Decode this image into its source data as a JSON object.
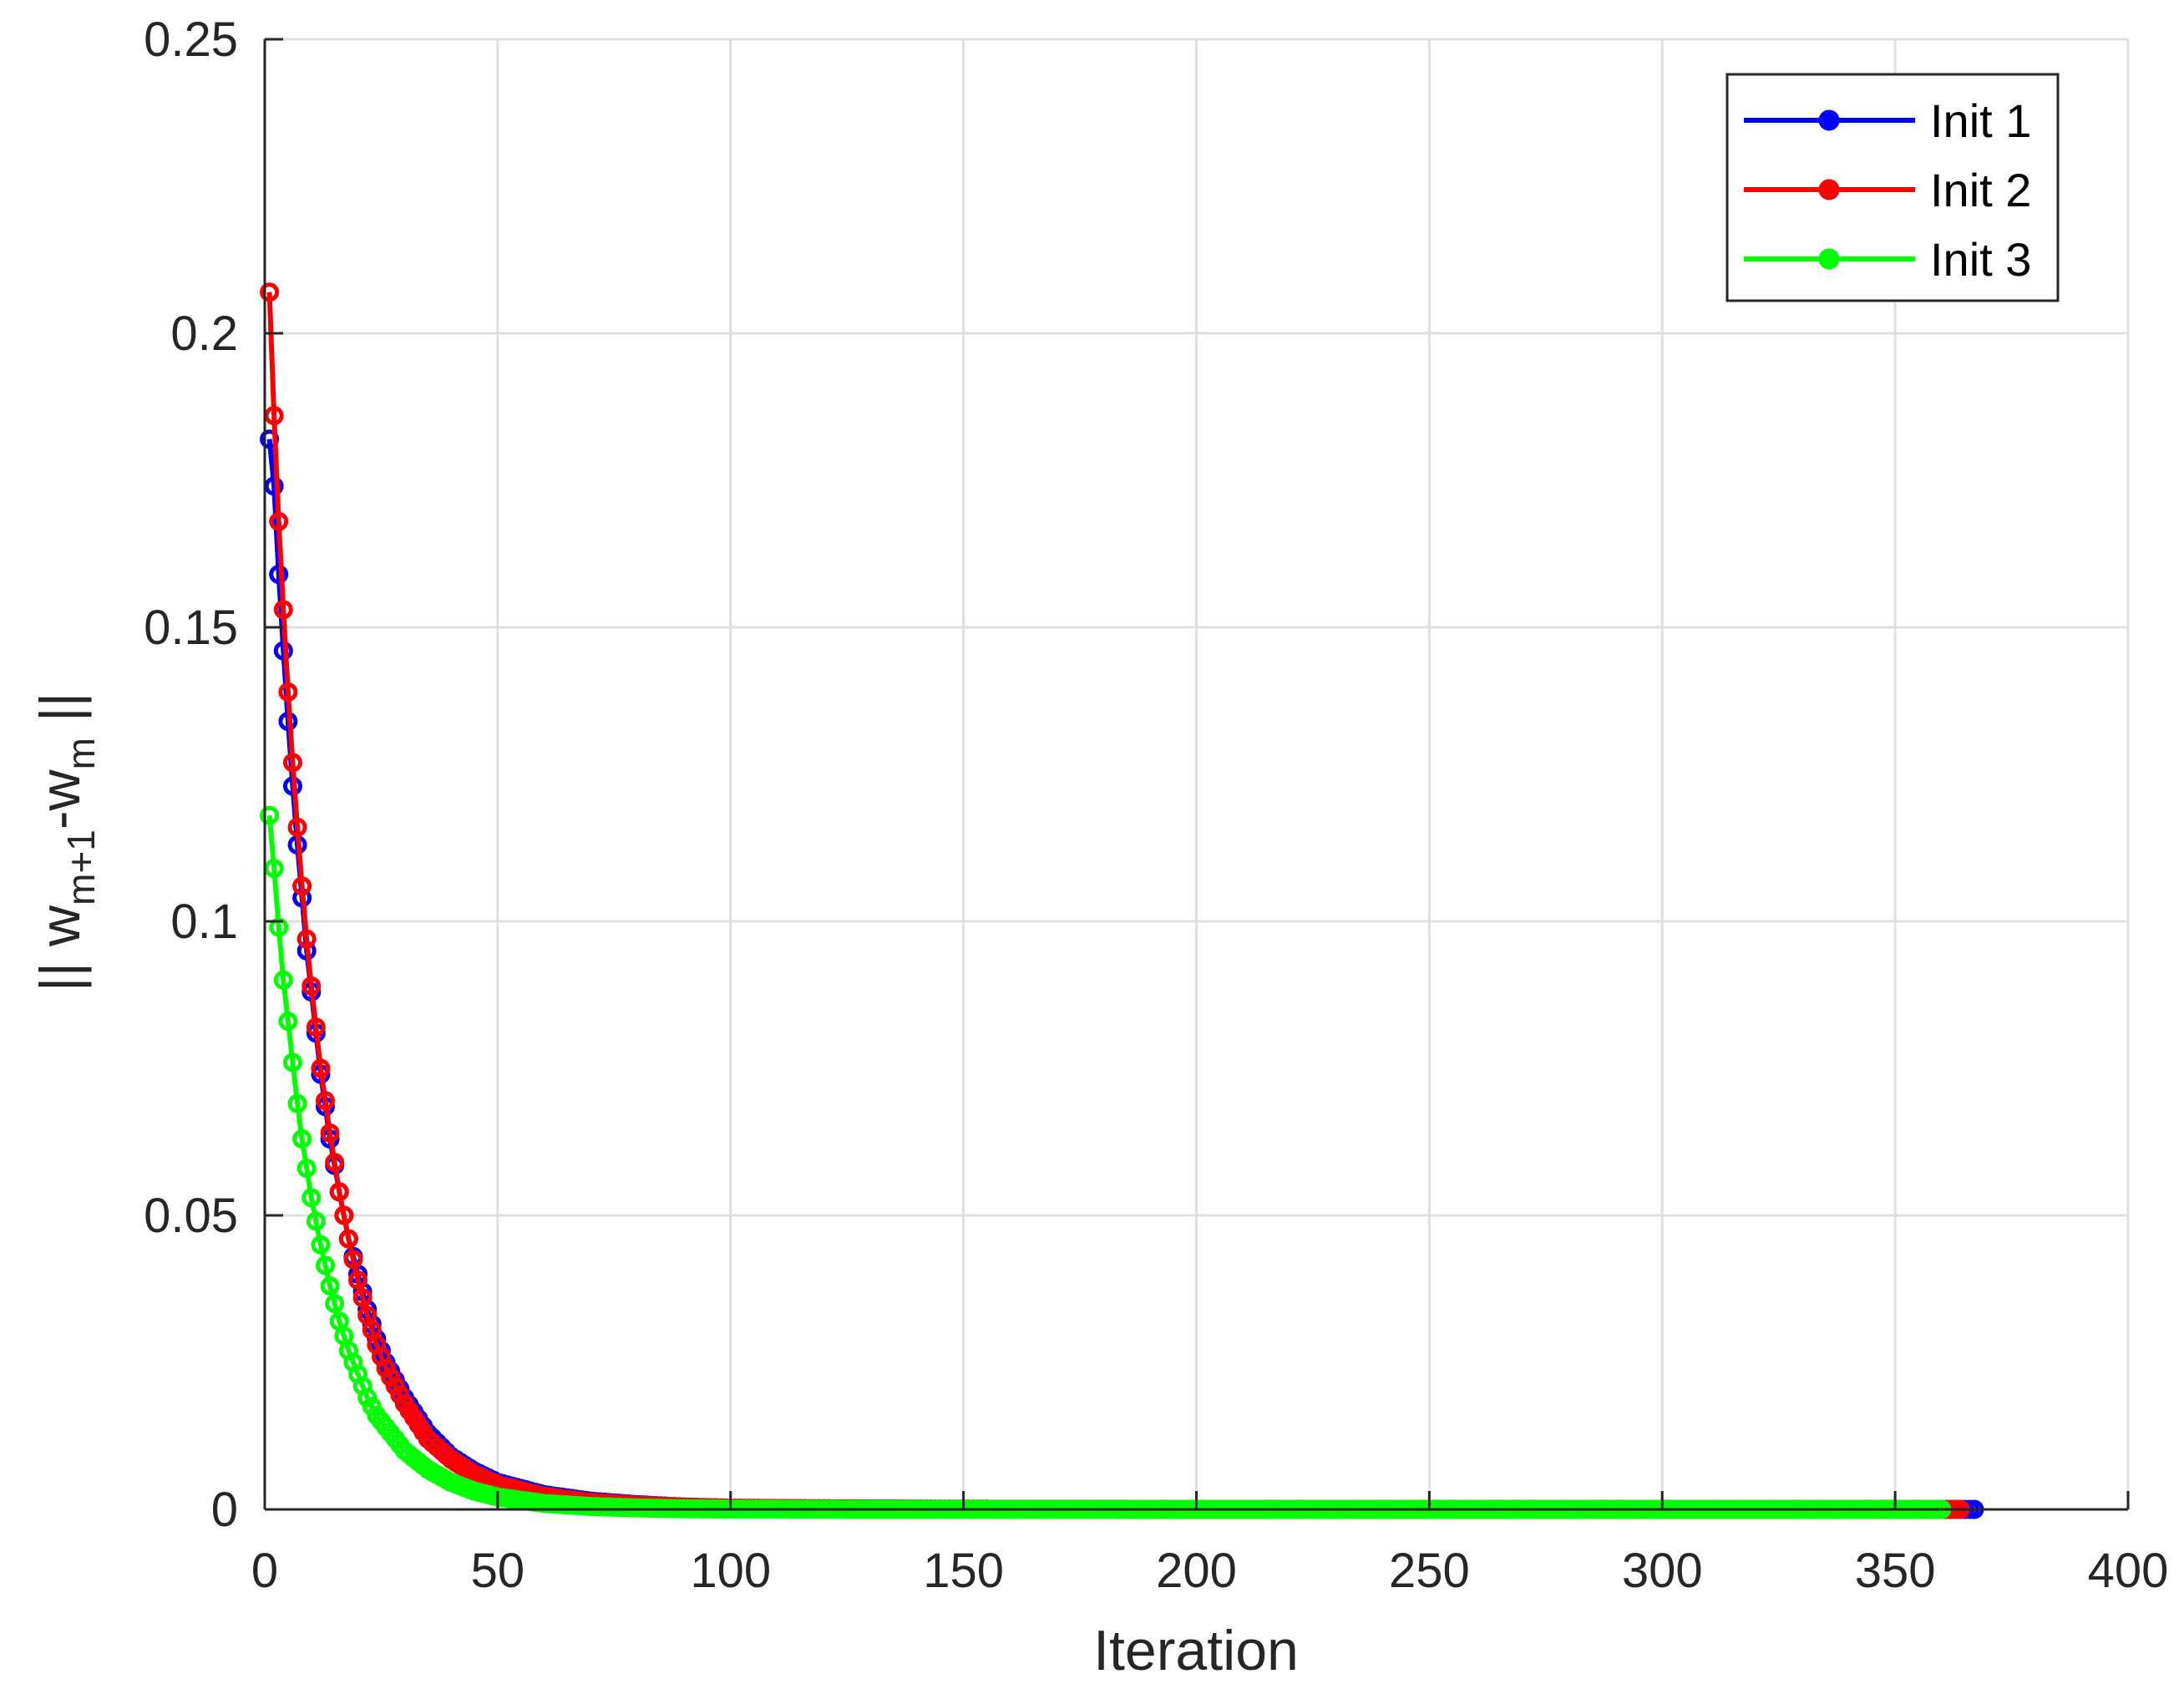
{
  "chart_data": {
    "type": "line",
    "xlabel": "Iteration",
    "ylabel_parts": [
      "|| w",
      "m+1",
      "-w",
      "m",
      " ||"
    ],
    "xlim": [
      0,
      400
    ],
    "ylim": [
      0,
      0.25
    ],
    "xticks": [
      0,
      50,
      100,
      150,
      200,
      250,
      300,
      350,
      400
    ],
    "xtick_labels": [
      "0",
      "50",
      "100",
      "150",
      "200",
      "250",
      "300",
      "350",
      "400"
    ],
    "yticks": [
      0,
      0.05,
      0.1,
      0.15,
      0.2,
      0.25
    ],
    "ytick_labels": [
      "0",
      "0.05",
      "0.1",
      "0.15",
      "0.2",
      "0.25"
    ],
    "grid": true,
    "legend_position": "top-right",
    "series": [
      {
        "name": "Init 1",
        "color": "#0000ff",
        "marker": "circle",
        "x": [
          1,
          2,
          3,
          4,
          5,
          6,
          7,
          8,
          9,
          10,
          12,
          14,
          16,
          18,
          20,
          22,
          24,
          26,
          28,
          30,
          35,
          40,
          45,
          50,
          60,
          70,
          80,
          90,
          100,
          120,
          150,
          200,
          250,
          300,
          350,
          367
        ],
        "y": [
          0.182,
          0.174,
          0.159,
          0.146,
          0.134,
          0.123,
          0.113,
          0.104,
          0.095,
          0.088,
          0.074,
          0.063,
          0.054,
          0.046,
          0.04,
          0.034,
          0.029,
          0.025,
          0.022,
          0.019,
          0.013,
          0.009,
          0.0065,
          0.0046,
          0.0025,
          0.0014,
          0.0008,
          0.0004,
          0.0002,
          0.0001,
          3e-05,
          0.0,
          0.0,
          0.0,
          0.0,
          0.0
        ]
      },
      {
        "name": "Init 2",
        "color": "#ff0000",
        "marker": "circle",
        "x": [
          1,
          2,
          3,
          4,
          5,
          6,
          7,
          8,
          9,
          10,
          12,
          14,
          16,
          18,
          20,
          22,
          24,
          26,
          28,
          30,
          35,
          40,
          45,
          50,
          60,
          70,
          80,
          90,
          100,
          120,
          150,
          200,
          250,
          300,
          350,
          364
        ],
        "y": [
          0.207,
          0.186,
          0.168,
          0.153,
          0.139,
          0.127,
          0.116,
          0.106,
          0.097,
          0.089,
          0.075,
          0.064,
          0.054,
          0.046,
          0.039,
          0.033,
          0.028,
          0.024,
          0.021,
          0.018,
          0.012,
          0.0085,
          0.006,
          0.0042,
          0.0022,
          0.0012,
          0.0007,
          0.0004,
          0.0002,
          0.0001,
          3e-05,
          0.0,
          0.0,
          0.0,
          0.0,
          0.0
        ]
      },
      {
        "name": "Init 3",
        "color": "#00ff00",
        "marker": "circle",
        "x": [
          1,
          2,
          3,
          4,
          5,
          6,
          7,
          8,
          9,
          10,
          12,
          14,
          16,
          18,
          20,
          22,
          24,
          26,
          28,
          30,
          35,
          40,
          45,
          50,
          60,
          70,
          80,
          90,
          100,
          120,
          150,
          200,
          250,
          300,
          350,
          360
        ],
        "y": [
          0.118,
          0.109,
          0.099,
          0.09,
          0.083,
          0.076,
          0.069,
          0.063,
          0.058,
          0.053,
          0.045,
          0.038,
          0.032,
          0.027,
          0.023,
          0.019,
          0.016,
          0.014,
          0.012,
          0.01,
          0.0068,
          0.0046,
          0.0031,
          0.0021,
          0.001,
          0.0005,
          0.00025,
          0.0001,
          5e-05,
          1e-05,
          0.0,
          0.0,
          0.0,
          0.0,
          0.0,
          0.0
        ]
      }
    ]
  }
}
